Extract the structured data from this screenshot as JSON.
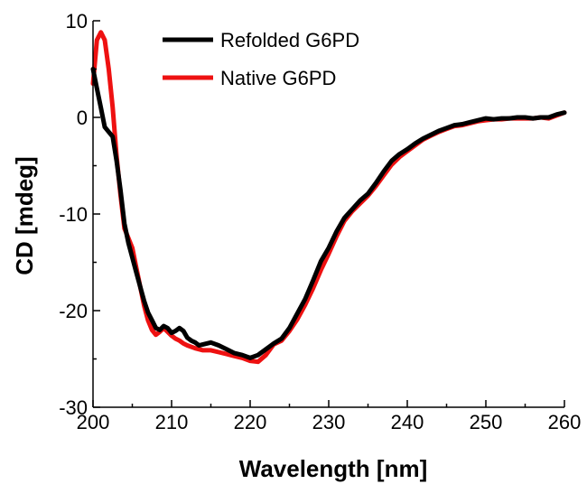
{
  "chart_data": {
    "type": "line",
    "title": "",
    "xlabel": "Wavelength [nm]",
    "ylabel": "CD [mdeg]",
    "xlim": [
      200,
      260
    ],
    "ylim": [
      -30,
      10
    ],
    "xticks": [
      200,
      210,
      220,
      230,
      240,
      250,
      260
    ],
    "yticks": [
      -30,
      -20,
      -10,
      0,
      10
    ],
    "x_tick_labels": [
      "200",
      "210",
      "220",
      "230",
      "240",
      "250",
      "260"
    ],
    "y_tick_labels": [
      "-30",
      "-20",
      "-10",
      "0",
      "10"
    ],
    "grid": false,
    "legend_position": "top-center",
    "series": [
      {
        "name": "Refolded G6PD",
        "color": "#000000",
        "x": [
          200,
          200.5,
          201,
          201.5,
          202,
          202.5,
          203,
          203.5,
          204,
          204.5,
          205,
          205.5,
          206,
          206.5,
          207,
          207.5,
          208,
          208.5,
          209,
          209.5,
          210,
          210.5,
          211,
          211.5,
          212,
          212.5,
          213,
          213.5,
          214,
          215,
          216,
          217,
          218,
          219,
          220,
          221,
          222,
          223,
          224,
          225,
          226,
          227,
          228,
          229,
          230,
          231,
          232,
          233,
          234,
          235,
          236,
          237,
          238,
          239,
          240,
          241,
          242,
          243,
          244,
          245,
          246,
          247,
          248,
          249,
          250,
          251,
          252,
          253,
          254,
          255,
          256,
          257,
          258,
          259,
          260
        ],
        "y": [
          5.0,
          3.0,
          1.0,
          -1.0,
          -1.5,
          -2.0,
          -4.5,
          -7.5,
          -11.0,
          -13.0,
          -14.5,
          -16.0,
          -17.5,
          -19.0,
          -20.2,
          -21.0,
          -21.8,
          -22.0,
          -21.6,
          -21.8,
          -22.3,
          -22.1,
          -21.8,
          -22.1,
          -22.8,
          -23.1,
          -23.3,
          -23.6,
          -23.5,
          -23.3,
          -23.6,
          -24.0,
          -24.4,
          -24.6,
          -24.9,
          -24.6,
          -24.0,
          -23.4,
          -22.9,
          -21.8,
          -20.3,
          -18.8,
          -16.9,
          -14.9,
          -13.5,
          -11.8,
          -10.4,
          -9.5,
          -8.6,
          -7.9,
          -6.8,
          -5.6,
          -4.5,
          -3.8,
          -3.3,
          -2.7,
          -2.2,
          -1.8,
          -1.4,
          -1.1,
          -0.8,
          -0.7,
          -0.5,
          -0.3,
          -0.1,
          -0.2,
          -0.1,
          -0.1,
          0.0,
          0.0,
          -0.1,
          0.0,
          0.0,
          0.3,
          0.5
        ]
      },
      {
        "name": "Native G6PD",
        "color": "#ee1111",
        "x": [
          200,
          200.5,
          201,
          201.5,
          202,
          202.5,
          203,
          203.5,
          204,
          204.5,
          205,
          205.5,
          206,
          206.5,
          207,
          207.5,
          208,
          208.5,
          209,
          209.5,
          210,
          210.5,
          211,
          211.5,
          212,
          213,
          214,
          215,
          216,
          217,
          218,
          219,
          220,
          221,
          222,
          223,
          224,
          225,
          226,
          227,
          228,
          229,
          230,
          231,
          232,
          233,
          234,
          235,
          236,
          237,
          238,
          239,
          240,
          241,
          242,
          243,
          244,
          245,
          246,
          247,
          248,
          249,
          250,
          251,
          252,
          253,
          254,
          255,
          256,
          257,
          258,
          259,
          260
        ],
        "y": [
          3.5,
          8.0,
          8.8,
          8.0,
          5.0,
          1.0,
          -4.0,
          -8.0,
          -11.5,
          -12.5,
          -13.5,
          -15.5,
          -17.5,
          -19.5,
          -21.0,
          -22.0,
          -22.5,
          -22.2,
          -21.8,
          -22.2,
          -22.6,
          -22.9,
          -23.1,
          -23.4,
          -23.6,
          -23.9,
          -24.1,
          -24.1,
          -24.3,
          -24.5,
          -24.7,
          -24.9,
          -25.2,
          -25.3,
          -24.6,
          -23.5,
          -23.1,
          -22.1,
          -20.9,
          -19.4,
          -17.7,
          -15.8,
          -14.1,
          -12.3,
          -10.7,
          -9.7,
          -8.9,
          -8.1,
          -7.1,
          -6.0,
          -4.9,
          -4.1,
          -3.5,
          -2.9,
          -2.3,
          -1.9,
          -1.5,
          -1.2,
          -0.9,
          -0.8,
          -0.6,
          -0.4,
          -0.3,
          -0.2,
          -0.2,
          -0.1,
          -0.1,
          -0.1,
          -0.1,
          0.0,
          -0.1,
          0.2,
          0.5
        ]
      }
    ]
  }
}
